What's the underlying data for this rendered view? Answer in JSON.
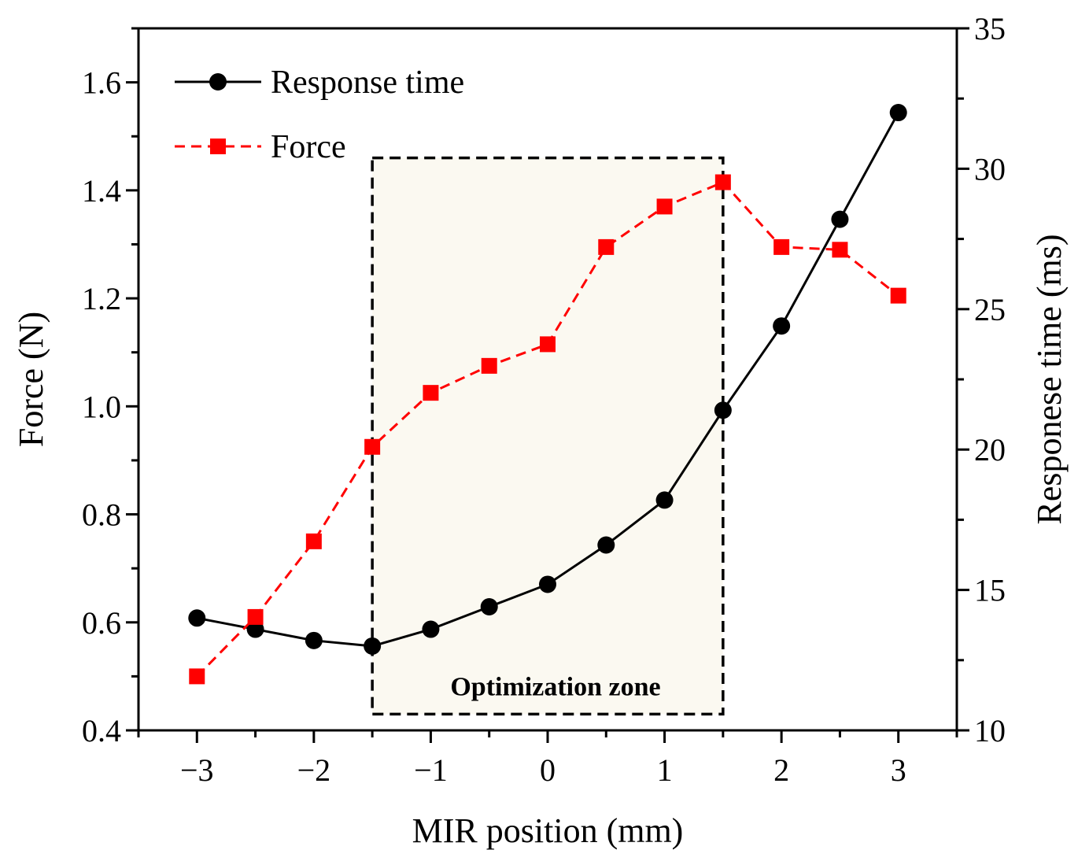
{
  "chart_data": {
    "type": "line",
    "x": [
      -3,
      -2.5,
      -2,
      -1.5,
      -1,
      -0.5,
      0,
      0.5,
      1,
      1.5,
      2,
      2.5,
      3
    ],
    "xlabel": "MIR position (mm)",
    "xlim": [
      -3.5,
      3.5
    ],
    "xticks": [
      -3,
      -2,
      -1,
      0,
      1,
      2,
      3
    ],
    "xtick_labels": [
      "−3",
      "−2",
      "−1",
      "0",
      "1",
      "2",
      "3"
    ],
    "ylabel_left": "Force (N)",
    "ylim_left": [
      0.4,
      1.7
    ],
    "yticks_left": [
      0.4,
      0.6,
      0.8,
      1.0,
      1.2,
      1.4,
      1.6
    ],
    "ytick_labels_left": [
      "0.4",
      "0.6",
      "0.8",
      "1.0",
      "1.2",
      "1.4",
      "1.6"
    ],
    "ylabel_right": "Responese time (ms)",
    "ylim_right": [
      10,
      35
    ],
    "yticks_right": [
      10,
      15,
      20,
      25,
      30,
      35
    ],
    "ytick_labels_right": [
      "10",
      "15",
      "20",
      "25",
      "30",
      "35"
    ],
    "series": [
      {
        "name": "Response time",
        "axis": "right",
        "marker": "circle",
        "line": "solid",
        "color": "#000000",
        "values": [
          14.0,
          13.6,
          13.2,
          13.0,
          13.6,
          14.4,
          15.2,
          16.6,
          18.2,
          21.4,
          24.4,
          28.2,
          32.0
        ]
      },
      {
        "name": "Force",
        "axis": "left",
        "marker": "square",
        "line": "dashed",
        "color": "#ff0000",
        "values": [
          0.5,
          0.61,
          0.75,
          0.925,
          1.025,
          1.075,
          1.115,
          1.295,
          1.37,
          1.415,
          1.295,
          1.29,
          1.205
        ]
      }
    ],
    "annotation": {
      "label": "Optimization zone",
      "x_range": [
        -1.5,
        1.5
      ],
      "y_range_left": [
        0.43,
        1.46
      ],
      "fill": "#fbf9f1"
    },
    "legend_position": "top-left"
  }
}
